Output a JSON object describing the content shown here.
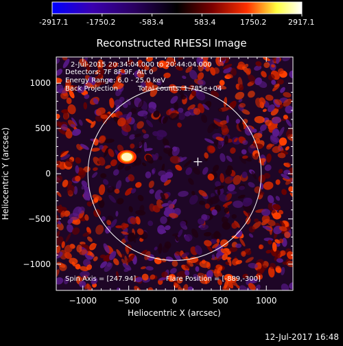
{
  "colorbar": {
    "ticks": [
      "-2917.1",
      "-1750.2",
      "-583.4",
      "583.4",
      "1750.2",
      "2917.1"
    ],
    "min": -2917.1,
    "max": 2917.1,
    "colors": [
      "#0000ff",
      "#3a00b0",
      "#2a0060",
      "#000000",
      "#7a0000",
      "#ff3000",
      "#ffff40",
      "#ffffff"
    ]
  },
  "plot": {
    "title": "Reconstructed RHESSI Image",
    "xlabel": "Heliocentric X (arcsec)",
    "ylabel": "Heliocentric Y (arcsec)",
    "xlim": [
      -1290,
      1290
    ],
    "ylim": [
      -1290,
      1290
    ],
    "xticks": [
      -1000,
      -500,
      0,
      500,
      1000
    ],
    "yticks": [
      -1000,
      -500,
      0,
      500,
      1000
    ],
    "xtick_labels": [
      "−1000",
      "−500",
      "0",
      "500",
      "1000"
    ],
    "ytick_labels": [
      "−1000",
      "−500",
      "0",
      "500",
      "1000"
    ],
    "solar_limb_radius": 945,
    "flare_marker": [
      254,
      132
    ],
    "bright_source": [
      -520,
      185
    ]
  },
  "annotations": {
    "time_range": "2-Jul-2015 20:34:04.000 to 20:44:04.000",
    "detectors": "Detectors: 7F 8F 9F, Att 0",
    "energy": "Energy Range: 6.0 - 25.0 keV",
    "method": "Back Projection",
    "counts": "Total counts: 1.785e+04",
    "spin_axis": "Spin Axis = [247.94]",
    "flare_position": "Flare Position = [-889,-300]"
  },
  "footer": {
    "date": "12-Jul-2017 16:48"
  }
}
